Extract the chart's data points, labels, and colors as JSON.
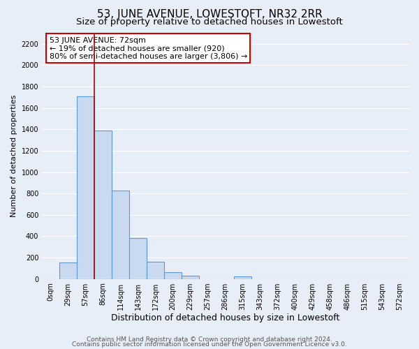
{
  "title": "53, JUNE AVENUE, LOWESTOFT, NR32 2RR",
  "subtitle": "Size of property relative to detached houses in Lowestoft",
  "xlabel": "Distribution of detached houses by size in Lowestoft",
  "ylabel": "Number of detached properties",
  "bar_labels": [
    "0sqm",
    "29sqm",
    "57sqm",
    "86sqm",
    "114sqm",
    "143sqm",
    "172sqm",
    "200sqm",
    "229sqm",
    "257sqm",
    "286sqm",
    "315sqm",
    "343sqm",
    "372sqm",
    "400sqm",
    "429sqm",
    "458sqm",
    "486sqm",
    "515sqm",
    "543sqm",
    "572sqm"
  ],
  "bar_values": [
    0,
    155,
    1710,
    1390,
    825,
    380,
    160,
    65,
    30,
    0,
    0,
    25,
    0,
    0,
    0,
    0,
    0,
    0,
    0,
    0,
    0
  ],
  "bar_color": "#c8d9f0",
  "bar_edge_color": "#5b9bd5",
  "vline_color": "#aa0000",
  "vline_bar_index": 2,
  "ylim": [
    0,
    2300
  ],
  "yticks": [
    0,
    200,
    400,
    600,
    800,
    1000,
    1200,
    1400,
    1600,
    1800,
    2000,
    2200
  ],
  "annotation_title": "53 JUNE AVENUE: 72sqm",
  "annotation_line1": "← 19% of detached houses are smaller (920)",
  "annotation_line2": "80% of semi-detached houses are larger (3,806) →",
  "annotation_box_facecolor": "#ffffff",
  "annotation_box_edgecolor": "#cc0000",
  "footer_line1": "Contains HM Land Registry data © Crown copyright and database right 2024.",
  "footer_line2": "Contains public sector information licensed under the Open Government Licence v3.0.",
  "bg_color": "#e8eef8",
  "grid_color": "#ffffff",
  "title_fontsize": 11,
  "subtitle_fontsize": 9.5,
  "xlabel_fontsize": 9,
  "ylabel_fontsize": 8,
  "tick_fontsize": 7,
  "annotation_fontsize": 8,
  "footer_fontsize": 6.5
}
